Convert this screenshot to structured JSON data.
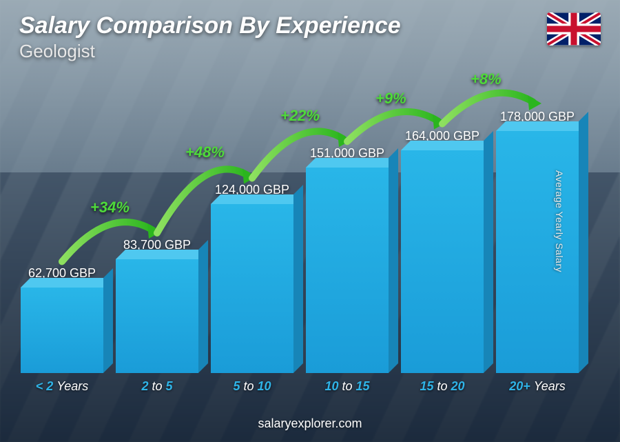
{
  "header": {
    "title": "Salary Comparison By Experience",
    "subtitle": "Geologist",
    "flag_country": "United Kingdom"
  },
  "chart": {
    "type": "bar",
    "ylabel": "Average Yearly Salary",
    "currency": "GBP",
    "max_value": 178000,
    "bar_color": "#29b6e8",
    "bar_top_color": "#4fc8f0",
    "bar_side_color": "#1785b8",
    "value_text_color": "#ffffff",
    "xlabel_accent_color": "#2fb4e8",
    "pct_color": "#4eda3a",
    "background_style": "photo-solar-panels",
    "bars": [
      {
        "range_pre": "< 2",
        "range_suf": "Years",
        "value": 62700,
        "value_label": "62,700 GBP"
      },
      {
        "range_pre": "2",
        "range_mid": "to",
        "range_post": "5",
        "value": 83700,
        "value_label": "83,700 GBP"
      },
      {
        "range_pre": "5",
        "range_mid": "to",
        "range_post": "10",
        "value": 124000,
        "value_label": "124,000 GBP"
      },
      {
        "range_pre": "10",
        "range_mid": "to",
        "range_post": "15",
        "value": 151000,
        "value_label": "151,000 GBP"
      },
      {
        "range_pre": "15",
        "range_mid": "to",
        "range_post": "20",
        "value": 164000,
        "value_label": "164,000 GBP"
      },
      {
        "range_pre": "20+",
        "range_suf": "Years",
        "value": 178000,
        "value_label": "178,000 GBP"
      }
    ],
    "increases": [
      {
        "from": 0,
        "to": 1,
        "pct": "+34%"
      },
      {
        "from": 1,
        "to": 2,
        "pct": "+48%"
      },
      {
        "from": 2,
        "to": 3,
        "pct": "+22%"
      },
      {
        "from": 3,
        "to": 4,
        "pct": "+9%"
      },
      {
        "from": 4,
        "to": 5,
        "pct": "+8%"
      }
    ]
  },
  "footer": {
    "site": "salaryexplorer.com"
  }
}
